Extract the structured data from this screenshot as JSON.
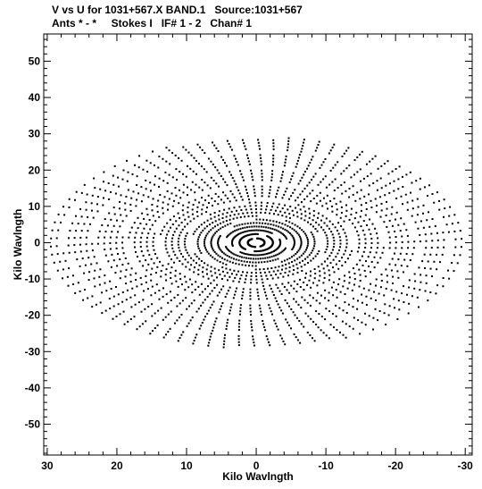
{
  "header": {
    "line1": "V vs U for 1031+567.X BAND.1   Source:1031+567",
    "line2": "Ants * - *     Stokes I   IF# 1 - 2   Chan# 1"
  },
  "chart_data": {
    "type": "scatter",
    "title": "V vs U for 1031+567.X BAND.1   Source:1031+567",
    "subtitle": "Ants * - *     Stokes I   IF# 1 - 2   Chan# 1",
    "xlabel": "Kilo Wavlngth",
    "ylabel": "Kilo Wavlngth",
    "xlim": [
      30.5,
      -31.0
    ],
    "ylim": [
      -58.5,
      57.5
    ],
    "x_ticks": [
      30,
      20,
      10,
      0,
      -10,
      -20,
      -30
    ],
    "x_tick_labels": [
      "30",
      "20",
      "10",
      "0",
      "-10",
      "-20",
      "-30"
    ],
    "y_ticks": [
      50,
      40,
      30,
      20,
      10,
      0,
      -10,
      -20,
      -30,
      -40,
      -50
    ],
    "y_tick_labels": [
      "50",
      "40",
      "30",
      "20",
      "10",
      "0",
      "-10",
      "-20",
      "-30",
      "-40",
      "-50"
    ],
    "grid": false,
    "marker_color": "#000000",
    "tracks": {
      "description_free": true,
      "radius_min": 1.2,
      "radius_max": 29.5,
      "count": 32,
      "v_scale": 1.9,
      "rotation_deg": -12,
      "hour_angle_span_deg": 145,
      "points_per_track": 34
    }
  }
}
